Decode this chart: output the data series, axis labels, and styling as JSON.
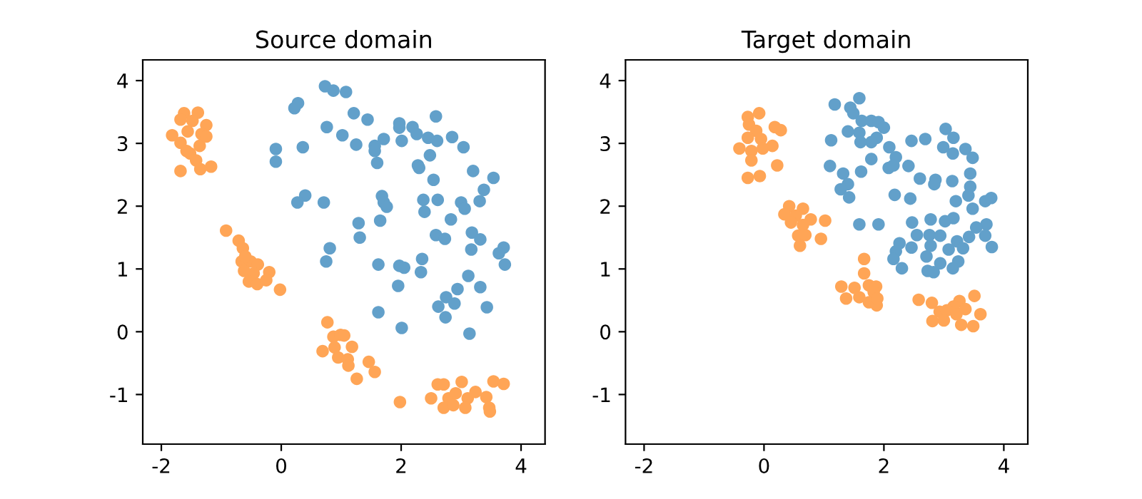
{
  "chart_data": [
    {
      "type": "scatter",
      "title": "Source domain",
      "marker": "circle",
      "xlim": [
        -2.31,
        4.4
      ],
      "ylim": [
        -1.79,
        4.33
      ],
      "xticks": [
        -2,
        0,
        2,
        4
      ],
      "yticks": [
        -1,
        0,
        1,
        2,
        3,
        4
      ],
      "series": [
        {
          "color": "#62a0ca",
          "x": [
            0.73,
            0.87,
            1.08,
            0.28,
            0.22,
            1.21,
            1.44,
            2.58,
            1.97,
            1.97,
            2.19,
            2.26,
            2.45,
            2.6,
            2.85,
            3.04,
            0.76,
            1.02,
            1.25,
            1.71,
            2.01,
            1.56,
            1.56,
            1.6,
            0.36,
            -0.09,
            -0.09,
            2.48,
            2.28,
            2.3,
            3.2,
            2.54,
            3.54,
            3.38,
            0.4,
            0.27,
            0.71,
            1.68,
            1.71,
            1.76,
            2.37,
            2.61,
            2.39,
            3.0,
            3.06,
            3.31,
            2.83,
            1.65,
            1.29,
            1.31,
            2.58,
            2.73,
            3.18,
            3.32,
            3.17,
            0.81,
            0.75,
            1.62,
            1.97,
            2.05,
            2.35,
            2.33,
            3.71,
            3.63,
            3.73,
            3.12,
            1.95,
            2.94,
            3.32,
            2.75,
            2.89,
            2.62,
            3.43,
            1.62,
            2.74,
            2.01,
            3.14
          ],
          "values": [
            3.91,
            3.84,
            3.82,
            3.64,
            3.56,
            3.48,
            3.38,
            3.43,
            3.32,
            3.25,
            3.26,
            3.15,
            3.09,
            3.04,
            3.1,
            2.94,
            3.26,
            3.13,
            2.98,
            3.07,
            3.04,
            2.96,
            2.88,
            2.69,
            2.94,
            2.91,
            2.71,
            2.81,
            2.65,
            2.61,
            2.56,
            2.42,
            2.45,
            2.26,
            2.17,
            2.06,
            2.06,
            2.16,
            2.06,
            1.99,
            2.1,
            2.1,
            1.91,
            2.06,
            1.96,
            2.08,
            1.79,
            1.77,
            1.73,
            1.5,
            1.54,
            1.48,
            1.58,
            1.47,
            1.31,
            1.33,
            1.12,
            1.07,
            1.05,
            1.02,
            1.16,
            0.95,
            1.34,
            1.25,
            1.07,
            0.89,
            0.73,
            0.68,
            0.71,
            0.55,
            0.45,
            0.4,
            0.39,
            0.31,
            0.23,
            0.06,
            -0.03
          ]
        },
        {
          "color": "#ffa556",
          "x": [
            -1.62,
            -1.39,
            -1.68,
            -1.48,
            -1.25,
            -1.82,
            -1.56,
            -1.33,
            -1.68,
            -1.36,
            -1.52,
            -1.42,
            -1.17,
            -1.35,
            -1.68,
            -1.25,
            -1.58,
            -0.92,
            -0.71,
            -0.64,
            -0.66,
            -0.51,
            -0.39,
            -0.62,
            -0.46,
            -0.2,
            -0.54,
            -0.4,
            -0.25,
            -0.02,
            -0.6,
            0.77,
            0.87,
            0.99,
            1.05,
            0.69,
            0.89,
            1.18,
            0.95,
            1.11,
            1.12,
            1.46,
            1.56,
            1.26,
            1.98,
            2.61,
            2.71,
            3.01,
            3.54,
            3.71,
            2.5,
            2.79,
            2.91,
            3.11,
            3.24,
            3.42,
            2.71,
            2.87,
            3.07,
            3.47,
            3.48
          ],
          "values": [
            3.48,
            3.49,
            3.38,
            3.36,
            3.29,
            3.13,
            3.19,
            3.15,
            3.01,
            2.96,
            2.84,
            2.73,
            2.63,
            2.59,
            2.56,
            3.11,
            2.88,
            1.61,
            1.45,
            1.33,
            1.12,
            1.12,
            1.07,
            0.97,
            0.93,
            0.95,
            0.8,
            0.76,
            0.82,
            0.67,
            1.2,
            0.15,
            -0.08,
            -0.05,
            -0.06,
            -0.31,
            -0.25,
            -0.24,
            -0.41,
            -0.44,
            -0.54,
            -0.48,
            -0.64,
            -0.75,
            -1.12,
            -0.84,
            -0.84,
            -0.8,
            -0.79,
            -0.83,
            -1.06,
            -1.06,
            -0.98,
            -1.06,
            -0.96,
            -1.04,
            -1.21,
            -1.17,
            -1.21,
            -1.21,
            -1.27
          ]
        }
      ]
    },
    {
      "type": "scatter",
      "title": "Target domain",
      "marker": "circle",
      "xlim": [
        -2.31,
        4.4
      ],
      "ylim": [
        -1.79,
        4.33
      ],
      "xticks": [
        -2,
        0,
        2,
        4
      ],
      "yticks": [
        -1,
        0,
        1,
        2,
        3,
        4
      ],
      "series": [
        {
          "color": "#62a0ca",
          "x": [
            1.18,
            1.59,
            1.44,
            1.49,
            1.63,
            1.79,
            1.91,
            2.0,
            1.4,
            1.59,
            1.88,
            1.79,
            1.61,
            1.12,
            2.09,
            2.46,
            2.69,
            3.03,
            3.16,
            2.99,
            3.15,
            3.36,
            3.48,
            2.2,
            2.08,
            2.16,
            1.79,
            2.41,
            1.1,
            1.32,
            1.62,
            3.44,
            2.6,
            2.86,
            3.14,
            2.84,
            3.44,
            1.4,
            1.28,
            1.42,
            2.18,
            2.44,
            3.2,
            3.41,
            3.48,
            3.69,
            3.79,
            1.59,
            1.91,
            2.47,
            2.78,
            3.16,
            3.02,
            3.71,
            3.54,
            2.55,
            2.76,
            2.94,
            3.42,
            3.22,
            3.69,
            3.8,
            2.26,
            2.46,
            2.78,
            3.08,
            3.32,
            2.2,
            2.16,
            2.71,
            3.24,
            2.3,
            2.73,
            2.83,
            2.94,
            3.15
          ],
          "values": [
            3.62,
            3.72,
            3.57,
            3.48,
            3.36,
            3.36,
            3.34,
            3.25,
            3.19,
            3.17,
            3.09,
            3.02,
            3.02,
            3.05,
            2.94,
            3.04,
            3.07,
            3.23,
            3.09,
            2.94,
            2.84,
            2.91,
            2.77,
            2.78,
            2.61,
            2.65,
            2.75,
            2.64,
            2.64,
            2.52,
            2.55,
            2.52,
            2.44,
            2.42,
            2.4,
            2.35,
            2.31,
            2.35,
            2.27,
            2.14,
            2.18,
            2.12,
            2.08,
            2.17,
            1.96,
            2.08,
            2.13,
            1.71,
            1.71,
            1.74,
            1.79,
            1.81,
            1.76,
            1.71,
            1.66,
            1.54,
            1.54,
            1.53,
            1.51,
            1.44,
            1.53,
            1.35,
            1.41,
            1.34,
            1.37,
            1.31,
            1.33,
            1.28,
            1.16,
            1.2,
            1.12,
            1.01,
            0.97,
            0.95,
            1.09,
            1.01
          ]
        },
        {
          "color": "#ffa556",
          "x": [
            -0.27,
            -0.08,
            -0.25,
            -0.13,
            0.18,
            0.28,
            -0.27,
            -0.05,
            0.02,
            0.14,
            -0.41,
            -0.21,
            -0.02,
            -0.21,
            0.22,
            -0.27,
            -0.07,
            0.42,
            0.65,
            0.34,
            0.53,
            0.78,
            1.02,
            0.45,
            0.65,
            0.57,
            0.69,
            0.95,
            0.6,
            1.67,
            1.67,
            1.29,
            1.51,
            1.75,
            1.87,
            1.83,
            1.37,
            1.59,
            1.75,
            1.88,
            1.89,
            2.58,
            2.8,
            3.51,
            3.26,
            3.16,
            2.93,
            3.05,
            3.21,
            3.36,
            3.61,
            2.81,
            3.0,
            3.29,
            3.49
          ],
          "values": [
            3.42,
            3.48,
            3.3,
            3.2,
            3.26,
            3.21,
            3.09,
            3.07,
            null,
            2.96,
            2.92,
            2.88,
            2.92,
            2.73,
            2.65,
            2.45,
            2.48,
            2.0,
            1.96,
            1.87,
            1.85,
            1.79,
            1.77,
            1.74,
            1.7,
            1.53,
            1.54,
            1.48,
            1.37,
            1.16,
            0.93,
            0.72,
            0.7,
            0.74,
            0.72,
            0.63,
            0.53,
            0.55,
            0.47,
            0.42,
            0.53,
            0.51,
            0.46,
            0.57,
            0.49,
            0.4,
            0.32,
            0.34,
            0.28,
            0.36,
            0.28,
            0.17,
            0.18,
            0.11,
            0.09
          ]
        }
      ]
    }
  ]
}
